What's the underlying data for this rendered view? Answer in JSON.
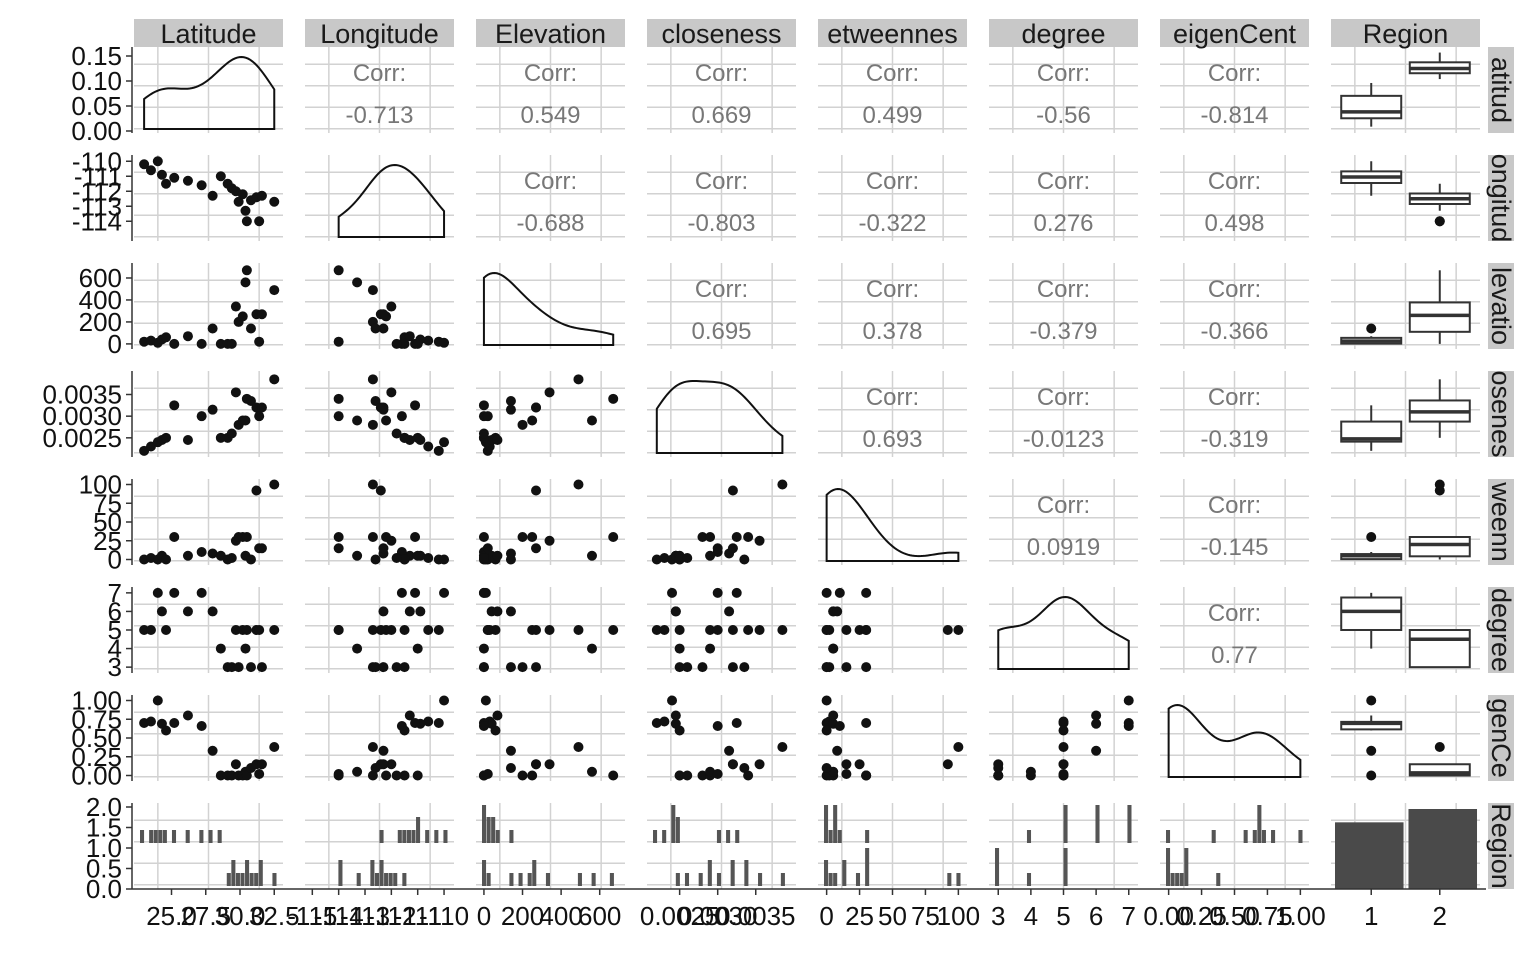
{
  "chart_data": {
    "type": "pairs",
    "variables": [
      "Latitude",
      "Longitude",
      "Elevation",
      "closeness",
      "betweenness",
      "degree",
      "eigenCent",
      "Region"
    ],
    "strip_top": [
      "Latitude",
      "Longitude",
      "Elevation",
      "closeness",
      "etweennes",
      "degree",
      "eigenCent",
      "Region"
    ],
    "strip_right": [
      "atitud",
      "ongitud",
      "levatio",
      "osenes",
      "weenn",
      "degree",
      "genCe",
      "Region"
    ],
    "ranges": {
      "Latitude": [
        22.7,
        32.7
      ],
      "Longitude": [
        -115.05,
        -109.85
      ],
      "Elevation": [
        -10,
        700
      ],
      "closeness": [
        0.00215,
        0.00395
      ],
      "betweenness": [
        -2,
        102
      ],
      "degree": [
        2.9,
        7.1
      ],
      "eigenCent": [
        -0.02,
        1.02
      ]
    },
    "ticks": {
      "Latitude": {
        "values": [
          25,
          27.5,
          30,
          32.5
        ],
        "labels": [
          "25.0",
          "27.5",
          "30.0",
          "32.5"
        ]
      },
      "Longitude": {
        "values": [
          -115,
          -114,
          -113,
          -112,
          -111,
          -110
        ],
        "labels": [
          "-115",
          "-114",
          "-113",
          "-112",
          "-111",
          "-110"
        ]
      },
      "Elevation": {
        "values": [
          0,
          200,
          400,
          600
        ],
        "labels": [
          "0",
          "200",
          "400",
          "600"
        ]
      },
      "closeness": {
        "values": [
          0.0025,
          0.003,
          0.0035
        ],
        "labels": [
          "0.0025",
          "0.0030",
          "0.0035"
        ]
      },
      "betweenness": {
        "values": [
          0,
          25,
          50,
          75,
          100
        ],
        "labels": [
          "0",
          "25",
          "50",
          "75",
          "100"
        ]
      },
      "degree": {
        "values": [
          3,
          4,
          5,
          6,
          7
        ],
        "labels": [
          "3",
          "4",
          "5",
          "6",
          "7"
        ]
      },
      "eigenCent": {
        "values": [
          0,
          0.25,
          0.5,
          0.75,
          1
        ],
        "labels": [
          "0.00",
          "0.25",
          "0.50",
          "0.75",
          "1.00"
        ]
      },
      "Region": {
        "labels": [
          "1",
          "2"
        ]
      }
    },
    "row_ticks": {
      "Latitude": {
        "values": [
          0,
          0.05,
          0.1,
          0.15
        ],
        "labels": [
          "0.00",
          "0.05",
          "0.10",
          "0.15"
        ]
      },
      "Longitude": {
        "values": [
          -114,
          -113,
          -112,
          -111,
          -110
        ],
        "labels": [
          "-114",
          "-113",
          "-112",
          "-111",
          "-110"
        ]
      },
      "Elevation": {
        "values": [
          0,
          200,
          400,
          600
        ],
        "labels": [
          "0",
          "200",
          "400",
          "600"
        ]
      },
      "closeness": {
        "values": [
          0.0025,
          0.003,
          0.0035
        ],
        "labels": [
          "0.0025",
          "0.0030",
          "0.0035"
        ]
      },
      "betweenness": {
        "values": [
          0,
          25,
          50,
          75,
          100
        ],
        "labels": [
          "0",
          "25",
          "50",
          "75",
          "100"
        ]
      },
      "degree": {
        "values": [
          3,
          4,
          5,
          6,
          7
        ],
        "labels": [
          "3",
          "4",
          "5",
          "6",
          "7"
        ]
      },
      "eigenCent": {
        "values": [
          0,
          0.25,
          0.5,
          0.75,
          1
        ],
        "labels": [
          "0.00",
          "0.25",
          "0.50",
          "0.75",
          "1.00"
        ]
      },
      "Region": {
        "values": [
          0,
          0.5,
          1,
          1.5,
          2
        ],
        "labels": [
          "0.0",
          "0.5",
          "1.0",
          "1.5",
          "2.0"
        ]
      }
    },
    "density_ymax": 0.16,
    "correlation_label": "Corr:",
    "correlations": [
      {
        "row": "Latitude",
        "col": "Longitude",
        "value": "-0.713"
      },
      {
        "row": "Latitude",
        "col": "Elevation",
        "value": "0.549"
      },
      {
        "row": "Latitude",
        "col": "closeness",
        "value": "0.669"
      },
      {
        "row": "Latitude",
        "col": "betweenness",
        "value": "0.499"
      },
      {
        "row": "Latitude",
        "col": "degree",
        "value": "-0.56"
      },
      {
        "row": "Latitude",
        "col": "eigenCent",
        "value": "-0.814"
      },
      {
        "row": "Longitude",
        "col": "Elevation",
        "value": "-0.688"
      },
      {
        "row": "Longitude",
        "col": "closeness",
        "value": "-0.803"
      },
      {
        "row": "Longitude",
        "col": "betweenness",
        "value": "-0.322"
      },
      {
        "row": "Longitude",
        "col": "degree",
        "value": "0.276"
      },
      {
        "row": "Longitude",
        "col": "eigenCent",
        "value": "0.498"
      },
      {
        "row": "Elevation",
        "col": "closeness",
        "value": "0.695"
      },
      {
        "row": "Elevation",
        "col": "betweenness",
        "value": "0.378"
      },
      {
        "row": "Elevation",
        "col": "degree",
        "value": "-0.379"
      },
      {
        "row": "Elevation",
        "col": "eigenCent",
        "value": "-0.366"
      },
      {
        "row": "closeness",
        "col": "betweenness",
        "value": "0.693"
      },
      {
        "row": "closeness",
        "col": "degree",
        "value": "-0.0123"
      },
      {
        "row": "closeness",
        "col": "eigenCent",
        "value": "-0.319"
      },
      {
        "row": "betweenness",
        "col": "degree",
        "value": "0.0919"
      },
      {
        "row": "betweenness",
        "col": "eigenCent",
        "value": "-0.145"
      },
      {
        "row": "degree",
        "col": "eigenCent",
        "value": "0.77"
      }
    ],
    "observations": [
      {
        "Latitude": 23.0,
        "Longitude": -110.2,
        "Elevation": 20,
        "closeness": 0.0022,
        "betweenness": 0,
        "degree": 5,
        "eigenCent": 0.7,
        "Region": 1
      },
      {
        "Latitude": 23.5,
        "Longitude": -110.6,
        "Elevation": 30,
        "closeness": 0.0023,
        "betweenness": 2,
        "degree": 5,
        "eigenCent": 0.72,
        "Region": 1
      },
      {
        "Latitude": 24.0,
        "Longitude": -110.0,
        "Elevation": 10,
        "closeness": 0.0024,
        "betweenness": 0,
        "degree": 7,
        "eigenCent": 1.0,
        "Region": 1
      },
      {
        "Latitude": 24.3,
        "Longitude": -110.9,
        "Elevation": 40,
        "closeness": 0.00245,
        "betweenness": 5,
        "degree": 6,
        "eigenCent": 0.69,
        "Region": 1
      },
      {
        "Latitude": 24.6,
        "Longitude": -111.5,
        "Elevation": 60,
        "closeness": 0.0025,
        "betweenness": 0,
        "degree": 5,
        "eigenCent": 0.6,
        "Region": 1
      },
      {
        "Latitude": 25.2,
        "Longitude": -111.1,
        "Elevation": 0,
        "closeness": 0.00325,
        "betweenness": 30,
        "degree": 7,
        "eigenCent": 0.7,
        "Region": 1
      },
      {
        "Latitude": 26.2,
        "Longitude": -111.3,
        "Elevation": 70,
        "closeness": 0.00245,
        "betweenness": 5,
        "degree": 6,
        "eigenCent": 0.8,
        "Region": 1
      },
      {
        "Latitude": 27.2,
        "Longitude": -111.6,
        "Elevation": 0,
        "closeness": 0.003,
        "betweenness": 10,
        "degree": 7,
        "eigenCent": 0.66,
        "Region": 1
      },
      {
        "Latitude": 28.0,
        "Longitude": -112.3,
        "Elevation": 140,
        "closeness": 0.00315,
        "betweenness": 8,
        "degree": 6,
        "eigenCent": 0.33,
        "Region": 1
      },
      {
        "Latitude": 28.6,
        "Longitude": -111.0,
        "Elevation": 0,
        "closeness": 0.0025,
        "betweenness": 5,
        "degree": 4,
        "eigenCent": 0.0,
        "Region": 1
      },
      {
        "Latitude": 29.1,
        "Longitude": -111.5,
        "Elevation": 0,
        "closeness": 0.0025,
        "betweenness": 0,
        "degree": 3,
        "eigenCent": 0.0,
        "Region": 2
      },
      {
        "Latitude": 29.4,
        "Longitude": -111.8,
        "Elevation": 0,
        "closeness": 0.0026,
        "betweenness": 2,
        "degree": 3,
        "eigenCent": 0.0,
        "Region": 2
      },
      {
        "Latitude": 29.7,
        "Longitude": -112.0,
        "Elevation": 340,
        "closeness": 0.00355,
        "betweenness": 25,
        "degree": 5,
        "eigenCent": 0.15,
        "Region": 2
      },
      {
        "Latitude": 29.9,
        "Longitude": -112.7,
        "Elevation": 200,
        "closeness": 0.0028,
        "betweenness": 30,
        "degree": 3,
        "eigenCent": 0.0,
        "Region": 2
      },
      {
        "Latitude": 30.2,
        "Longitude": -112.2,
        "Elevation": 250,
        "closeness": 0.0029,
        "betweenness": 30,
        "degree": 5,
        "eigenCent": 0.0,
        "Region": 2
      },
      {
        "Latitude": 30.4,
        "Longitude": -113.3,
        "Elevation": 560,
        "closeness": 0.0029,
        "betweenness": 5,
        "degree": 4,
        "eigenCent": 0.05,
        "Region": 2
      },
      {
        "Latitude": 30.5,
        "Longitude": -114.0,
        "Elevation": 670,
        "closeness": 0.0034,
        "betweenness": 30,
        "degree": 5,
        "eigenCent": 0.0,
        "Region": 2
      },
      {
        "Latitude": 30.8,
        "Longitude": -112.6,
        "Elevation": 140,
        "closeness": 0.00335,
        "betweenness": 0,
        "degree": 3,
        "eigenCent": 0.1,
        "Region": 2
      },
      {
        "Latitude": 31.2,
        "Longitude": -112.4,
        "Elevation": 270,
        "closeness": 0.0032,
        "betweenness": 92,
        "degree": 5,
        "eigenCent": 0.15,
        "Region": 2
      },
      {
        "Latitude": 31.4,
        "Longitude": -114.0,
        "Elevation": 20,
        "closeness": 0.003,
        "betweenness": 15,
        "degree": 5,
        "eigenCent": 0.02,
        "Region": 2
      },
      {
        "Latitude": 31.6,
        "Longitude": -112.3,
        "Elevation": 270,
        "closeness": 0.0032,
        "betweenness": 15,
        "degree": 3,
        "eigenCent": 0.15,
        "Region": 2
      },
      {
        "Latitude": 32.5,
        "Longitude": -112.7,
        "Elevation": 490,
        "closeness": 0.00385,
        "betweenness": 100,
        "degree": 5,
        "eigenCent": 0.38,
        "Region": 2
      }
    ]
  }
}
